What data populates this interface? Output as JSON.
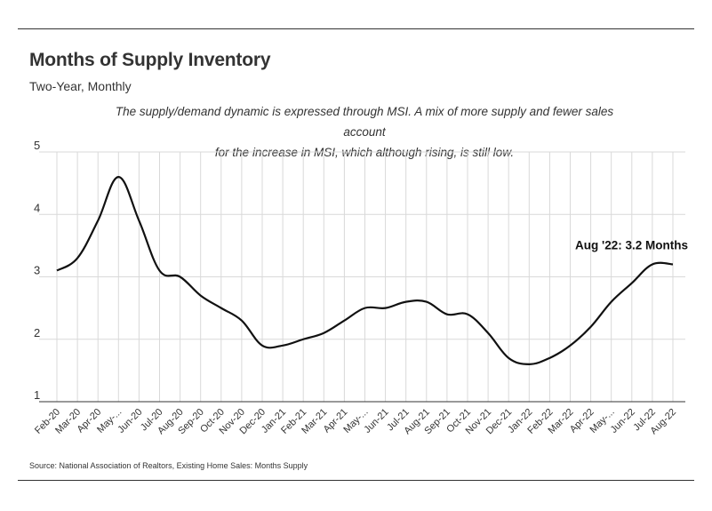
{
  "header": {
    "title": "Months of Supply Inventory",
    "subtitle": "Two-Year, Monthly",
    "note_line1": "The supply/demand dynamic is expressed through MSI. A mix of more supply and fewer sales account",
    "note_line2": "for the increase in MSI, which although rising, is still low."
  },
  "footer": {
    "source": "Source:  National Association of Realtors, Existing Home Sales: Months Supply"
  },
  "colors": {
    "line": "#111111",
    "grid": "#d9d9d9",
    "axis": "#333333"
  },
  "chart_data": {
    "type": "line",
    "title": "Months of Supply Inventory",
    "subtitle": "Two-Year, Monthly",
    "xlabel": "",
    "ylabel": "",
    "ylim": [
      1,
      5
    ],
    "yticks": [
      1,
      2,
      3,
      4,
      5
    ],
    "grid": "horizontal and vertical",
    "categories": [
      "Feb-20",
      "Mar-20",
      "Apr-20",
      "May-...",
      "Jun-20",
      "Jul-20",
      "Aug-20",
      "Sep-20",
      "Oct-20",
      "Nov-20",
      "Dec-20",
      "Jan-21",
      "Feb-21",
      "Mar-21",
      "Apr-21",
      "May-...",
      "Jun-21",
      "Jul-21",
      "Aug-21",
      "Sep-21",
      "Oct-21",
      "Nov-21",
      "Dec-21",
      "Jan-22",
      "Feb-22",
      "Mar-22",
      "Apr-22",
      "May-...",
      "Jun-22",
      "Jul-22",
      "Aug-22"
    ],
    "series": [
      {
        "values": [
          3.1,
          3.3,
          3.9,
          4.6,
          3.9,
          3.1,
          3.0,
          2.7,
          2.5,
          2.3,
          1.9,
          1.9,
          2.0,
          2.1,
          2.3,
          2.5,
          2.5,
          2.6,
          2.6,
          2.4,
          2.4,
          2.1,
          1.7,
          1.6,
          1.7,
          1.9,
          2.2,
          2.6,
          2.9,
          3.2,
          3.2
        ]
      }
    ],
    "annotation": {
      "text": "Aug '22: 3.2 Months",
      "category": "Aug-22",
      "value": 3.2
    }
  }
}
